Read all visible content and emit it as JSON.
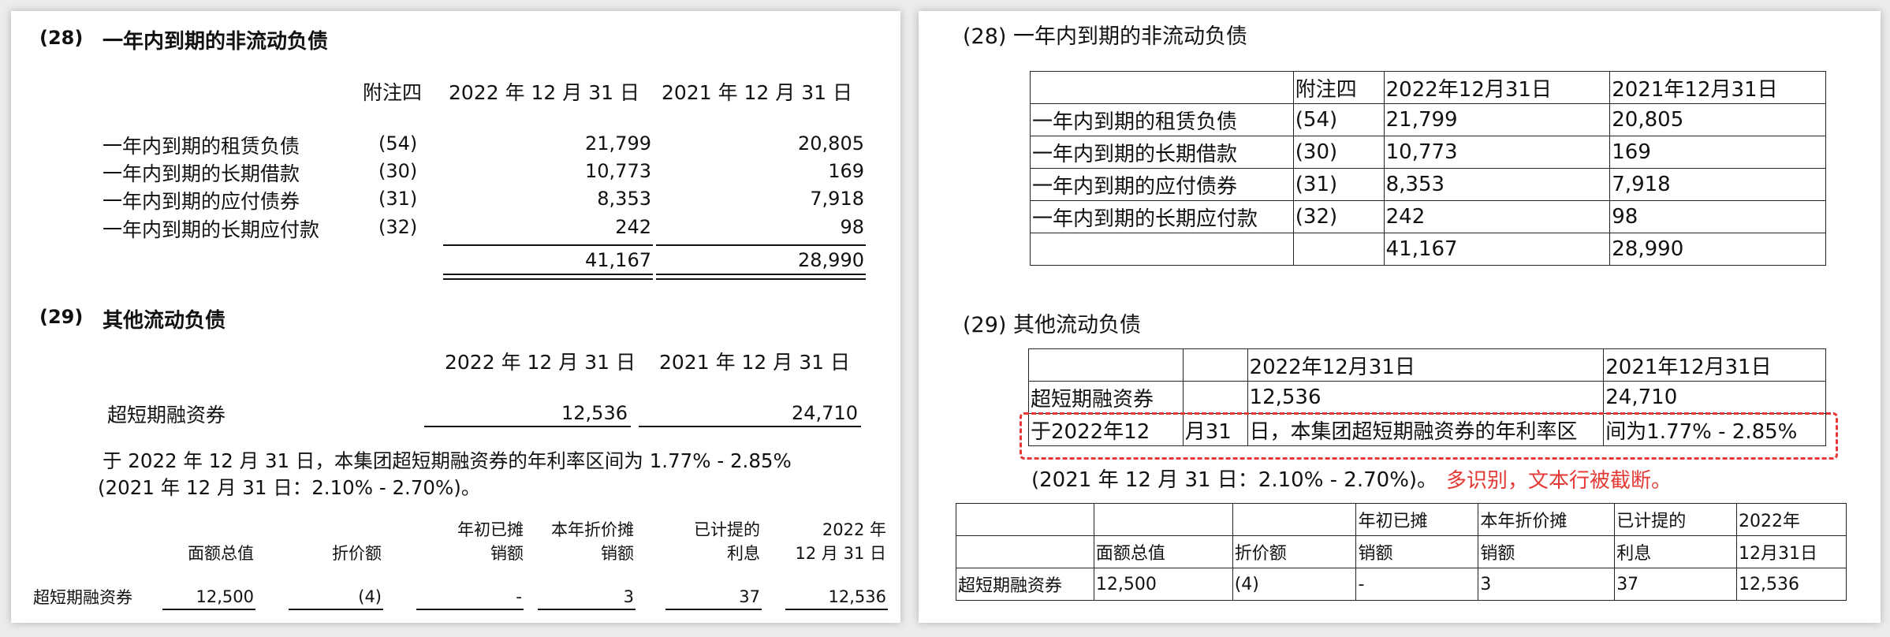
{
  "left": {
    "s28": {
      "num": "(28)",
      "title": "一年内到期的非流动负债",
      "header": {
        "note": "附注四",
        "y2022": "2022 年 12 月 31 日",
        "y2021": "2021 年 12 月 31 日"
      },
      "rows": [
        {
          "label": "一年内到期的租赁负债",
          "note": "(54)",
          "v2022": "21,799",
          "v2021": "20,805"
        },
        {
          "label": "一年内到期的长期借款",
          "note": "(30)",
          "v2022": "10,773",
          "v2021": "169"
        },
        {
          "label": "一年内到期的应付债券",
          "note": "(31)",
          "v2022": "8,353",
          "v2021": "7,918"
        },
        {
          "label": "一年内到期的长期应付款",
          "note": "(32)",
          "v2022": "242",
          "v2021": "98"
        }
      ],
      "total": {
        "v2022": "41,167",
        "v2021": "28,990"
      }
    },
    "s29": {
      "num": "(29)",
      "title": "其他流动负债",
      "header": {
        "y2022": "2022 年 12 月 31 日",
        "y2021": "2021 年 12 月 31 日"
      },
      "row": {
        "label": "超短期融资券",
        "v2022": "12,536",
        "v2021": "24,710"
      },
      "para1": "于 2022 年 12 月 31 日，本集团超短期融资券的年利率区间为 1.77% - 2.85%",
      "para2": "(2021 年 12 月 31 日：2.10% - 2.70%)。",
      "detail": {
        "h_top": [
          "",
          "",
          "年初已摊",
          "本年折价摊",
          "已计提的",
          "2022 年"
        ],
        "h_bot": [
          "面额总值",
          "折价额",
          "销额",
          "销额",
          "利息",
          "12 月 31 日"
        ],
        "row_label": "超短期融资券",
        "values": [
          "12,500",
          "(4)",
          "-",
          "3",
          "37",
          "12,536"
        ]
      }
    }
  },
  "right": {
    "s28": {
      "title": "(28) 一年内到期的非流动负债",
      "header": [
        "",
        "附注四",
        "2022年12月31日",
        "2021年12月31日"
      ],
      "rows": [
        [
          "一年内到期的租赁负债",
          "(54)",
          "21,799",
          "20,805"
        ],
        [
          "一年内到期的长期借款",
          "(30)",
          "10,773",
          "169"
        ],
        [
          "一年内到期的应付债券",
          "(31)",
          "8,353",
          "7,918"
        ],
        [
          "一年内到期的长期应付款",
          "(32)",
          "242",
          "98"
        ],
        [
          "",
          "",
          "41,167",
          "28,990"
        ]
      ]
    },
    "s29": {
      "title": "(29) 其他流动负债",
      "header": [
        "",
        "",
        "2022年12月31日",
        "2021年12月31日"
      ],
      "row1": [
        "超短期融资券",
        "",
        "12,536",
        "24,710"
      ],
      "row2": [
        "于2022年12",
        "月31",
        "日，本集团超短期融资券的年利率区",
        "间为1.77% - 2.85%"
      ],
      "para": "(2021 年 12 月 31 日：2.10% - 2.70%)。",
      "annotation": "多识别，文本行被截断。"
    },
    "detail": {
      "rows": [
        [
          "",
          "",
          "",
          "年初已摊",
          "本年折价摊",
          "已计提的",
          "2022年"
        ],
        [
          "",
          "面额总值",
          "折价额",
          "销额",
          "销额",
          "利息",
          "12月31日"
        ],
        [
          "超短期融资券",
          "12,500",
          "(4)",
          "-",
          "3",
          "37",
          "12,536"
        ]
      ]
    }
  }
}
